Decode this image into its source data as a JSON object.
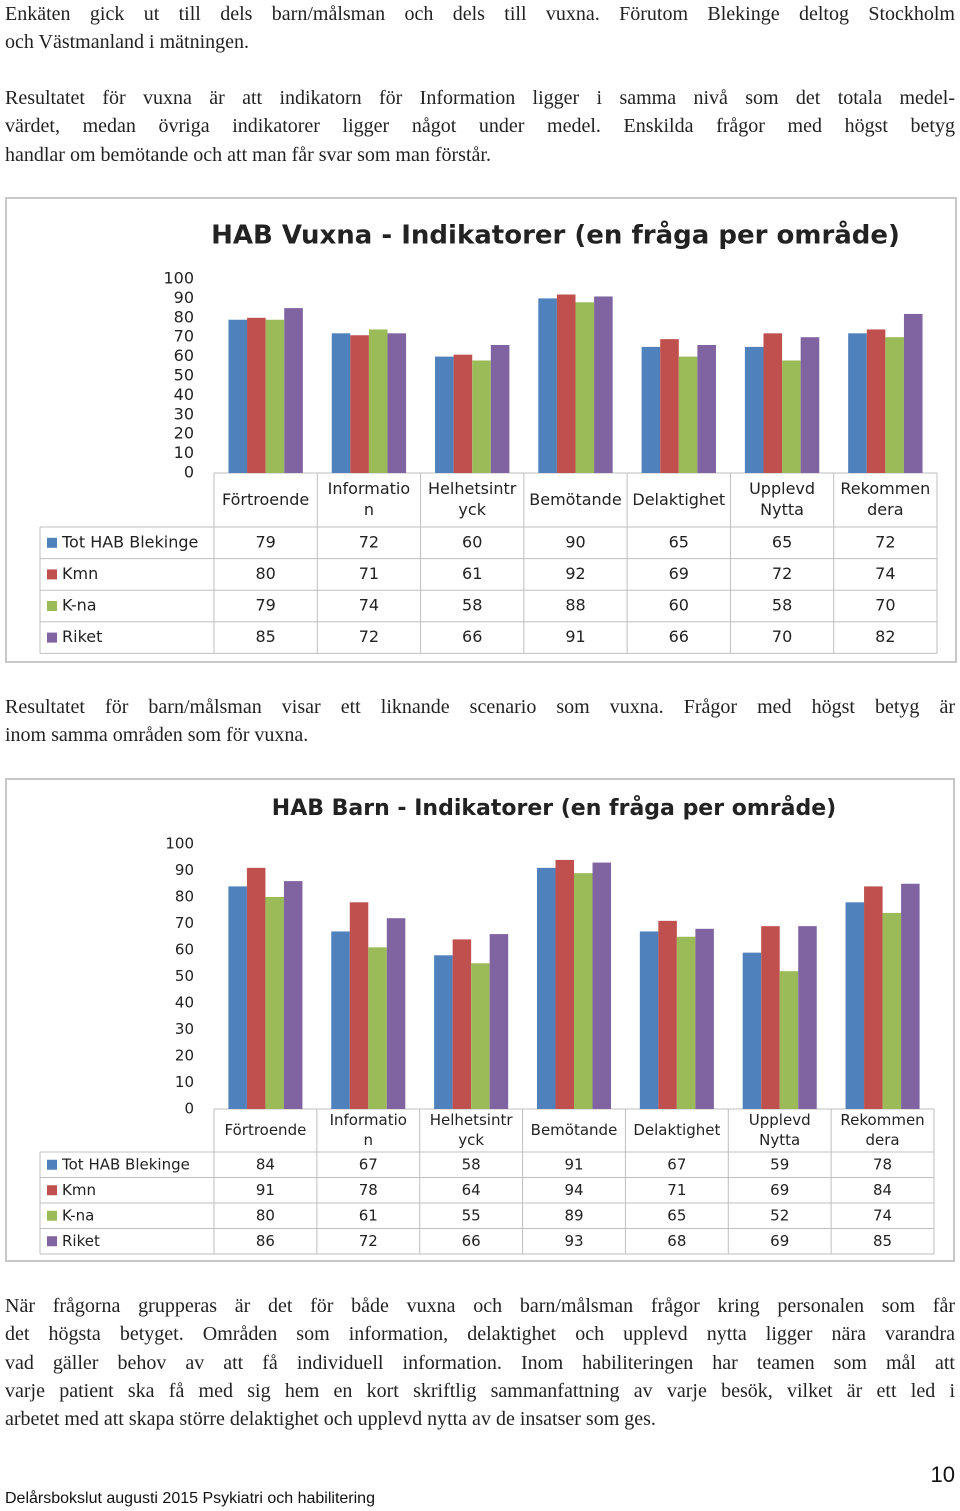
{
  "paragraphs": [
    [
      "Enkäten gick ut till dels barn/målsman och dels till vuxna. Förutom Blekinge deltog Stockholm",
      "och Västmanland i mätningen."
    ],
    [
      "Resultatet för vuxna är att indikatorn för Information ligger i samma nivå som det totala medel-",
      "värdet, medan övriga indikatorer ligger något under medel. Enskilda frågor med högst betyg",
      "handlar om bemötande och att man får svar som man förstår."
    ],
    [
      "Resultatet för barn/målsman visar ett liknande scenario som vuxna. Frågor med högst betyg är",
      "inom samma områden som för vuxna."
    ],
    [
      "När frågorna grupperas är det för både vuxna och barn/målsman frågor kring personalen som får",
      "det högsta betyget. Områden som information, delaktighet och upplevd nytta ligger nära varandra",
      "vad gäller behov av att få individuell information. Inom habiliteringen har teamen som mål att",
      "varje patient ska få med sig hem en kort skriftlig sammanfattning av varje besök, vilket är ett led i",
      "arbetet med att skapa större delaktighet och upplevd nytta av de insatser som ges."
    ]
  ],
  "chart_data": [
    {
      "type": "bar",
      "title": "HAB Vuxna - Indikatorer (en fråga per område)",
      "categories": [
        "Förtroende",
        "Informatio\nn",
        "Helhetsintr\nyck",
        "Bemötande",
        "Delaktighet",
        "Upplevd\nNytta",
        "Rekommen\ndera"
      ],
      "series": [
        {
          "name": "Tot HAB Blekinge",
          "color": "#4f81bd",
          "values": [
            79,
            72,
            60,
            90,
            65,
            65,
            72
          ]
        },
        {
          "name": "Kmn",
          "color": "#c0504d",
          "values": [
            80,
            71,
            61,
            92,
            69,
            72,
            74
          ]
        },
        {
          "name": "K-na",
          "color": "#9bbb59",
          "values": [
            79,
            74,
            58,
            88,
            60,
            58,
            70
          ]
        },
        {
          "name": "Riket",
          "color": "#8064a2",
          "values": [
            85,
            72,
            66,
            91,
            66,
            70,
            82
          ]
        }
      ],
      "ylim": [
        0,
        100
      ],
      "yticks": [
        0,
        10,
        20,
        30,
        40,
        50,
        60,
        70,
        80,
        90,
        100
      ]
    },
    {
      "type": "bar",
      "title": "HAB Barn - Indikatorer (en fråga per område)",
      "categories": [
        "Förtroende",
        "Informatio\nn",
        "Helhetsintr\nyck",
        "Bemötande",
        "Delaktighet",
        "Upplevd\nNytta",
        "Rekommen\ndera"
      ],
      "series": [
        {
          "name": "Tot HAB Blekinge",
          "color": "#4f81bd",
          "values": [
            84,
            67,
            58,
            91,
            67,
            59,
            78
          ]
        },
        {
          "name": "Kmn",
          "color": "#c0504d",
          "values": [
            91,
            78,
            64,
            94,
            71,
            69,
            84
          ]
        },
        {
          "name": "K-na",
          "color": "#9bbb59",
          "values": [
            80,
            61,
            55,
            89,
            65,
            52,
            74
          ]
        },
        {
          "name": "Riket",
          "color": "#8064a2",
          "values": [
            86,
            72,
            66,
            93,
            68,
            69,
            85
          ]
        }
      ],
      "ylim": [
        0,
        100
      ],
      "yticks": [
        0,
        10,
        20,
        30,
        40,
        50,
        60,
        70,
        80,
        90,
        100
      ]
    }
  ],
  "footer": "Delårsbokslut augusti 2015 Psykiatri och habilitering",
  "page_number": "10"
}
